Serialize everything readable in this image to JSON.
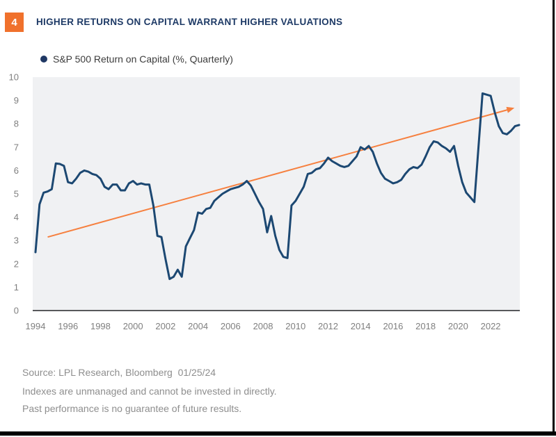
{
  "figure_badge": "4",
  "title": "HIGHER RETURNS ON CAPITAL WARRANT HIGHER VALUATIONS",
  "legend": {
    "label": "S&P 500 Return on Capital (%, Quarterly)"
  },
  "footer": {
    "source": "Source: LPL Research, Bloomberg  01/25/24",
    "disclaimer1": "Indexes are unmanaged and cannot be invested in directly.",
    "disclaimer2": "Past performance is no guarantee of future results."
  },
  "colors": {
    "line_navy": "#1C4872",
    "title_navy": "#1E3A66",
    "legend_dot_navy": "#1F3864",
    "badge_orange": "#F0712C",
    "arrow_orange": "#F6803F",
    "plot_background": "#F0F1F3",
    "axis_line": "#58595B",
    "tick_label": "#7F7F7F",
    "footer_text": "#8E8E8E"
  },
  "chart_data": {
    "type": "line",
    "title": "S&P 500 Return on Capital (%, Quarterly)",
    "xlabel": "",
    "ylabel": "",
    "ylim": [
      0,
      10
    ],
    "y_tick_step": 1,
    "grid": false,
    "legend_position": "top-left",
    "x_tick_years": [
      1994,
      1996,
      1998,
      2000,
      2002,
      2004,
      2006,
      2008,
      2010,
      2012,
      2014,
      2016,
      2018,
      2020,
      2022
    ],
    "x_start": 1994.0,
    "x_step": 0.25,
    "series": [
      {
        "name": "S&P 500 Return on Capital (%, Quarterly)",
        "values": [
          2.5,
          4.55,
          5.05,
          5.1,
          5.2,
          6.3,
          6.28,
          6.2,
          5.5,
          5.45,
          5.65,
          5.9,
          6.0,
          5.95,
          5.85,
          5.8,
          5.65,
          5.3,
          5.2,
          5.4,
          5.4,
          5.15,
          5.15,
          5.45,
          5.55,
          5.4,
          5.45,
          5.4,
          5.4,
          4.5,
          3.2,
          3.15,
          2.2,
          1.35,
          1.45,
          1.75,
          1.45,
          2.75,
          3.1,
          3.45,
          4.2,
          4.15,
          4.35,
          4.4,
          4.7,
          4.85,
          5.0,
          5.1,
          5.2,
          5.25,
          5.3,
          5.4,
          5.55,
          5.35,
          5.0,
          4.65,
          4.35,
          3.35,
          4.05,
          3.2,
          2.6,
          2.3,
          2.25,
          4.5,
          4.7,
          5.0,
          5.3,
          5.85,
          5.9,
          6.05,
          6.1,
          6.3,
          6.55,
          6.4,
          6.3,
          6.2,
          6.15,
          6.2,
          6.4,
          6.6,
          7.0,
          6.9,
          7.05,
          6.8,
          6.3,
          5.9,
          5.65,
          5.55,
          5.45,
          5.5,
          5.6,
          5.85,
          6.05,
          6.15,
          6.1,
          6.25,
          6.6,
          7.0,
          7.25,
          7.2,
          7.05,
          6.95,
          6.8,
          7.05,
          6.2,
          5.5,
          5.05,
          4.85,
          4.65,
          7.0,
          9.3,
          9.25,
          9.2,
          8.5,
          7.9,
          7.6,
          7.55,
          7.7,
          7.9,
          7.95
        ]
      }
    ],
    "trend_arrow": {
      "x1": 1994.75,
      "y1": 3.15,
      "x2": 2023.3,
      "y2": 8.65
    }
  }
}
